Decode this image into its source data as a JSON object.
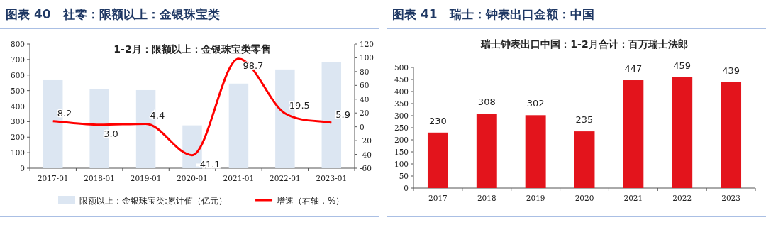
{
  "chart_data": [
    {
      "type": "bar",
      "title": "图表 40　社零：限额以上：金银珠宝类",
      "subtitle": "1-2月：限额以上：金银珠宝类零售",
      "categories": [
        "2017-01",
        "2018-01",
        "2019-01",
        "2020-01",
        "2021-01",
        "2022-01",
        "2023-01"
      ],
      "series": [
        {
          "name": "限额以上：金银珠宝类:累计值（亿元）",
          "color": "#dce6f2",
          "values": [
            567,
            510,
            503,
            276,
            545,
            636,
            683
          ]
        },
        {
          "name": "增速（右轴，%）",
          "type": "line",
          "axis": "y2",
          "color": "#ff0000",
          "values": [
            8.2,
            3.0,
            4.4,
            -41.1,
            98.7,
            19.5,
            5.9
          ],
          "value_labels": [
            "8.2",
            "3.0",
            "4.4",
            "-41.1",
            "98.7",
            "19.5",
            "5.9"
          ]
        }
      ],
      "ylim": [
        0,
        800
      ],
      "yticks": [
        0,
        100,
        200,
        300,
        400,
        500,
        600,
        700,
        800
      ],
      "y2lim": [
        -60,
        120
      ],
      "y2ticks": [
        -60,
        -40,
        -20,
        0,
        20,
        40,
        60,
        80,
        100,
        120
      ],
      "legend": "bottom",
      "marker": "none"
    },
    {
      "type": "bar",
      "title": "图表 41　瑞士：钟表出口金额：中国",
      "subtitle": "瑞士钟表出口中国：1-2月合计：百万瑞士法郎",
      "categories": [
        "2017",
        "2018",
        "2019",
        "2020",
        "2021",
        "2022",
        "2023"
      ],
      "values": [
        230,
        308,
        302,
        235,
        447,
        459,
        439
      ],
      "color": "#e3141c",
      "data_labels": true,
      "ylim": [
        0,
        500
      ],
      "yticks": [
        0,
        50,
        100,
        150,
        200,
        250,
        300,
        350,
        400,
        450,
        500
      ]
    }
  ]
}
